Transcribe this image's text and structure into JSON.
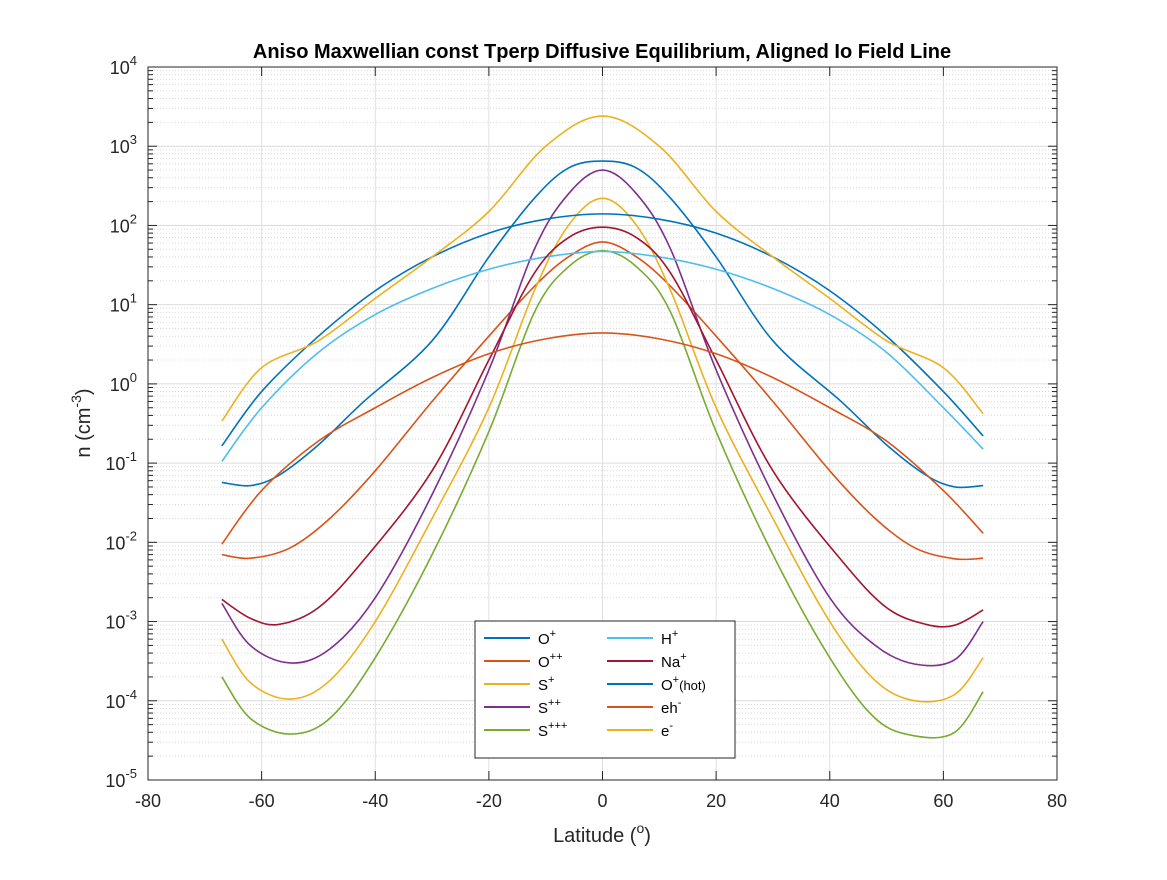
{
  "chart_data": {
    "type": "line",
    "title": "Aniso Maxwellian const Tperp Diffusive Equilibrium, Aligned Io Field Line",
    "xlabel": "Latitude (°)",
    "xlabel_parts": {
      "text": "Latitude (",
      "sup": "o",
      "close": ")"
    },
    "ylabel": "n (cm⁻³)",
    "ylabel_parts": {
      "text": "n (cm",
      "sup": "-3",
      "close": ")"
    },
    "xlim": [
      -80,
      80
    ],
    "ylim": [
      1e-05,
      10000.0
    ],
    "yscale": "log",
    "grid": true,
    "minor_grid": true,
    "legend_placement": "bottom-center",
    "legend_columns": 2,
    "xticks": [
      "-80",
      "-60",
      "-40",
      "-20",
      "0",
      "20",
      "40",
      "60",
      "80"
    ],
    "xtick_values": [
      -80,
      -60,
      -40,
      -20,
      0,
      20,
      40,
      60,
      80
    ],
    "yticks": [
      {
        "base": "10",
        "exp": "-5"
      },
      {
        "base": "10",
        "exp": "-4"
      },
      {
        "base": "10",
        "exp": "-3"
      },
      {
        "base": "10",
        "exp": "-2"
      },
      {
        "base": "10",
        "exp": "-1"
      },
      {
        "base": "10",
        "exp": "0"
      },
      {
        "base": "10",
        "exp": "1"
      },
      {
        "base": "10",
        "exp": "2"
      },
      {
        "base": "10",
        "exp": "3"
      },
      {
        "base": "10",
        "exp": "4"
      }
    ],
    "ytick_exponents": [
      -5,
      -4,
      -3,
      -2,
      -1,
      0,
      1,
      2,
      3,
      4
    ],
    "series": [
      {
        "name": "O+",
        "label": "O",
        "sup": "+",
        "sub": "",
        "color": "#0072BD",
        "x": [
          -67,
          -62,
          -57,
          -50,
          -42,
          -30,
          -20,
          -12,
          -6,
          0,
          6,
          12,
          20,
          30,
          42,
          50,
          57,
          62,
          67
        ],
        "y": [
          0.057,
          0.052,
          0.07,
          0.17,
          0.6,
          3.5,
          40,
          220,
          530,
          650,
          530,
          220,
          40,
          3.5,
          0.6,
          0.17,
          0.07,
          0.05,
          0.052
        ]
      },
      {
        "name": "O++",
        "label": "O",
        "sup": "++",
        "sub": "",
        "color": "#D95319",
        "x": [
          -67,
          -62,
          -55,
          -48,
          -40,
          -30,
          -20,
          -12,
          -6,
          0,
          6,
          12,
          20,
          30,
          40,
          48,
          55,
          62,
          67
        ],
        "y": [
          0.007,
          0.0063,
          0.0085,
          0.02,
          0.08,
          0.6,
          4,
          17,
          40,
          62,
          40,
          17,
          4,
          0.6,
          0.08,
          0.02,
          0.0085,
          0.0062,
          0.0063
        ]
      },
      {
        "name": "S+",
        "label": "S",
        "sup": "+",
        "sub": "",
        "color": "#EDB120",
        "x": [
          -67,
          -62,
          -55,
          -48,
          -40,
          -30,
          -20,
          -12,
          -6,
          0,
          6,
          12,
          20,
          30,
          40,
          48,
          55,
          62,
          67
        ],
        "y": [
          0.0006,
          0.00017,
          0.000105,
          0.00018,
          0.001,
          0.02,
          0.5,
          15,
          100,
          220,
          100,
          15,
          0.5,
          0.02,
          0.001,
          0.00018,
          0.0001,
          0.00012,
          0.00035
        ]
      },
      {
        "name": "S++",
        "label": "S",
        "sup": "++",
        "sub": "",
        "color": "#7E2F8E",
        "x": [
          -67,
          -62,
          -55,
          -48,
          -40,
          -30,
          -20,
          -12,
          -6,
          0,
          6,
          12,
          20,
          30,
          40,
          48,
          55,
          62,
          67
        ],
        "y": [
          0.0017,
          0.0005,
          0.0003,
          0.00045,
          0.002,
          0.04,
          1.5,
          50,
          250,
          500,
          250,
          50,
          1.5,
          0.04,
          0.002,
          0.0005,
          0.00029,
          0.00033,
          0.001
        ]
      },
      {
        "name": "S+++",
        "label": "S",
        "sup": "+++",
        "sub": "",
        "color": "#77AC30",
        "x": [
          -67,
          -62,
          -55,
          -48,
          -40,
          -30,
          -20,
          -12,
          -6,
          0,
          6,
          12,
          20,
          30,
          40,
          48,
          55,
          62,
          67
        ],
        "y": [
          0.0002,
          6e-05,
          3.8e-05,
          6e-05,
          0.00035,
          0.007,
          0.25,
          8,
          30,
          48,
          30,
          8,
          0.25,
          0.007,
          0.00035,
          6e-05,
          3.6e-05,
          4e-05,
          0.00013
        ]
      },
      {
        "name": "H+",
        "label": "H",
        "sup": "+",
        "sub": "",
        "color": "#4DBEEE",
        "x": [
          -67,
          -60,
          -50,
          -40,
          -30,
          -20,
          -10,
          0,
          10,
          20,
          30,
          40,
          50,
          60,
          67
        ],
        "y": [
          0.105,
          0.5,
          2.5,
          7.5,
          16,
          28,
          40,
          47,
          40,
          28,
          16,
          7.5,
          2.5,
          0.5,
          0.15
        ]
      },
      {
        "name": "Na+",
        "label": "Na",
        "sup": "+",
        "sub": "",
        "color": "#A2142F",
        "x": [
          -67,
          -62,
          -57,
          -50,
          -42,
          -30,
          -20,
          -12,
          -6,
          0,
          6,
          12,
          20,
          30,
          42,
          50,
          57,
          62,
          67
        ],
        "y": [
          0.0019,
          0.0011,
          0.00092,
          0.0015,
          0.006,
          0.08,
          2,
          25,
          70,
          95,
          70,
          25,
          2,
          0.08,
          0.006,
          0.0015,
          0.00092,
          0.0009,
          0.0014
        ]
      },
      {
        "name": "O+(hot)",
        "label": "O",
        "sup": "+",
        "sub": "(hot)",
        "color": "#0072BD",
        "x": [
          -67,
          -60,
          -50,
          -40,
          -30,
          -20,
          -10,
          0,
          10,
          20,
          30,
          40,
          50,
          60,
          67
        ],
        "y": [
          0.165,
          0.8,
          4,
          15,
          40,
          80,
          120,
          140,
          120,
          80,
          40,
          15,
          4,
          0.8,
          0.22
        ]
      },
      {
        "name": "eh-",
        "label": "eh",
        "sup": "-",
        "sub": "",
        "color": "#D95319",
        "x": [
          -67,
          -60,
          -50,
          -40,
          -30,
          -20,
          -10,
          0,
          10,
          20,
          30,
          40,
          50,
          60,
          67
        ],
        "y": [
          0.0095,
          0.045,
          0.19,
          0.5,
          1.2,
          2.4,
          3.7,
          4.4,
          3.7,
          2.4,
          1.2,
          0.5,
          0.19,
          0.045,
          0.013
        ]
      },
      {
        "name": "e-",
        "label": "e",
        "sup": "-",
        "sub": "",
        "color": "#EDB120",
        "x": [
          -67,
          -60,
          -50,
          -40,
          -30,
          -20,
          -10,
          0,
          10,
          20,
          30,
          40,
          50,
          60,
          67
        ],
        "y": [
          0.34,
          1.6,
          3.5,
          12,
          40,
          150,
          1000,
          2400,
          1000,
          150,
          40,
          12,
          3.5,
          1.6,
          0.42
        ]
      }
    ]
  }
}
